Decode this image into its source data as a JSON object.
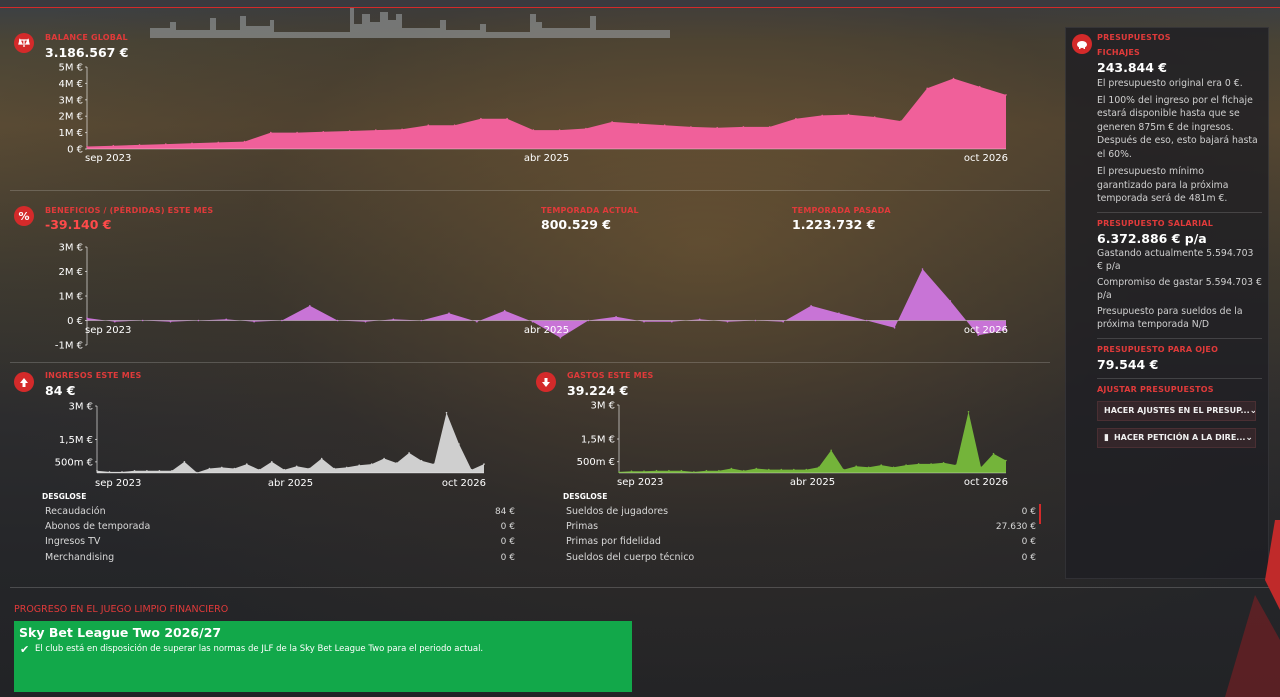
{
  "balance": {
    "title": "BALANCE GLOBAL",
    "value": "3.186.567 €"
  },
  "profit": {
    "title": "BENEFICIOS / (PÉRDIDAS) ESTE MES",
    "value": "-39.140 €",
    "current_title": "TEMPORADA ACTUAL",
    "current_value": "800.529 €",
    "last_title": "TEMPORADA PASADA",
    "last_value": "1.223.732 €"
  },
  "income": {
    "title": "INGRESOS ESTE MES",
    "value": "84 €",
    "breakdown_title": "DESGLOSE",
    "rows": [
      {
        "label": "Recaudación",
        "value": "84 €"
      },
      {
        "label": "Abonos de temporada",
        "value": "0 €"
      },
      {
        "label": "Ingresos TV",
        "value": "0 €"
      },
      {
        "label": "Merchandising",
        "value": "0 €"
      }
    ]
  },
  "expenses": {
    "title": "GASTOS ESTE MES",
    "value": "39.224 €",
    "breakdown_title": "DESGLOSE",
    "rows": [
      {
        "label": "Sueldos de jugadores",
        "value": "0 €"
      },
      {
        "label": "Primas",
        "value": "27.630 €"
      },
      {
        "label": "Primas por fidelidad",
        "value": "0 €"
      },
      {
        "label": "Sueldos del cuerpo técnico",
        "value": "0 €"
      }
    ]
  },
  "budgets": {
    "title": "PRESUPUESTOS",
    "transfer_title": "FICHAJES",
    "transfer_value": "243.844 €",
    "transfer_notes": [
      "El presupuesto original era 0 €.",
      "El 100% del ingreso por el fichaje estará disponible hasta que se generen 875m € de ingresos. Después de eso, esto bajará hasta el 60%.",
      "El presupuesto mínimo garantizado para la próxima temporada será de 481m €."
    ],
    "wage_title": "PRESUPUESTO SALARIAL",
    "wage_value": "6.372.886 € p/a",
    "wage_notes": [
      "Gastando actualmente 5.594.703 € p/a",
      "Compromiso de gastar 5.594.703 € p/a",
      "Presupuesto para sueldos de la próxima temporada N/D"
    ],
    "scout_title": "PRESUPUESTO PARA OJEO",
    "scout_value": "79.544 €",
    "adjust_title": "AJUSTAR PRESUPUESTOS",
    "btn_adjust": "HACER AJUSTES EN EL PRESUP...",
    "btn_request": "HACER PETICIÓN A LA DIRE..."
  },
  "ffp": {
    "title": "PROGRESO EN EL JUEGO LIMPIO FINANCIERO",
    "league": "Sky Bet League Two 2026/27",
    "status": "El club está en disposición de superar las normas de JLF de la Sky Bet League Two para el periodo actual."
  },
  "colors": {
    "accent": "#d42a2a",
    "balance": "#f0609a",
    "profit": "#c874d6",
    "income": "#cfcfcf",
    "expenses": "#74b43a",
    "ffp": "#12a84a"
  },
  "chart_data": [
    {
      "type": "area",
      "title": "BALANCE GLOBAL",
      "x_ticks": [
        "sep 2023",
        "abr 2025",
        "oct 2026"
      ],
      "y_ticks": [
        "5M €",
        "4M €",
        "3M €",
        "2M €",
        "1M €",
        "0 €"
      ],
      "ylim": [
        0,
        5000000
      ],
      "values": [
        150000,
        200000,
        250000,
        300000,
        350000,
        400000,
        450000,
        1000000,
        1000000,
        1050000,
        1100000,
        1150000,
        1200000,
        1450000,
        1450000,
        1850000,
        1850000,
        1150000,
        1150000,
        1250000,
        1650000,
        1550000,
        1450000,
        1350000,
        1300000,
        1350000,
        1350000,
        1850000,
        2050000,
        2100000,
        1950000,
        1700000,
        3700000,
        4300000,
        3800000,
        3300000
      ]
    },
    {
      "type": "area",
      "title": "BENEFICIOS / (PÉRDIDAS) ESTE MES",
      "x_ticks": [
        "sep 2023",
        "abr 2025",
        "oct 2026"
      ],
      "y_ticks": [
        "3M €",
        "2M €",
        "1M €",
        "0 €",
        "-1M €"
      ],
      "ylim": [
        -1000000,
        3000000
      ],
      "values": [
        100000,
        -50000,
        0,
        -50000,
        0,
        50000,
        -50000,
        0,
        600000,
        0,
        -50000,
        50000,
        0,
        300000,
        -50000,
        400000,
        -50000,
        -700000,
        0,
        150000,
        -50000,
        -50000,
        50000,
        -50000,
        0,
        -50000,
        600000,
        300000,
        0,
        -300000,
        2100000,
        800000,
        -600000,
        -400000
      ]
    },
    {
      "type": "area",
      "title": "INGRESOS ESTE MES",
      "x_ticks": [
        "sep 2023",
        "abr 2025",
        "oct 2026"
      ],
      "y_ticks": [
        "3M €",
        "1,5M €",
        "500m €"
      ],
      "ylim": [
        0,
        3000000
      ],
      "values": [
        100000,
        50000,
        50000,
        100000,
        100000,
        100000,
        100000,
        500000,
        20000,
        200000,
        250000,
        200000,
        400000,
        150000,
        500000,
        150000,
        300000,
        200000,
        650000,
        200000,
        250000,
        350000,
        400000,
        650000,
        450000,
        900000,
        550000,
        400000,
        2700000,
        1300000,
        150000,
        400000
      ]
    },
    {
      "type": "area",
      "title": "GASTOS ESTE MES",
      "x_ticks": [
        "sep 2023",
        "abr 2025",
        "oct 2026"
      ],
      "y_ticks": [
        "3M €",
        "1,5M €",
        "500m €"
      ],
      "ylim": [
        0,
        3000000
      ],
      "values": [
        50000,
        80000,
        80000,
        100000,
        100000,
        100000,
        50000,
        100000,
        100000,
        200000,
        100000,
        200000,
        150000,
        150000,
        150000,
        150000,
        250000,
        1000000,
        150000,
        300000,
        250000,
        350000,
        250000,
        350000,
        400000,
        400000,
        450000,
        350000,
        2700000,
        250000,
        850000,
        550000
      ]
    }
  ]
}
